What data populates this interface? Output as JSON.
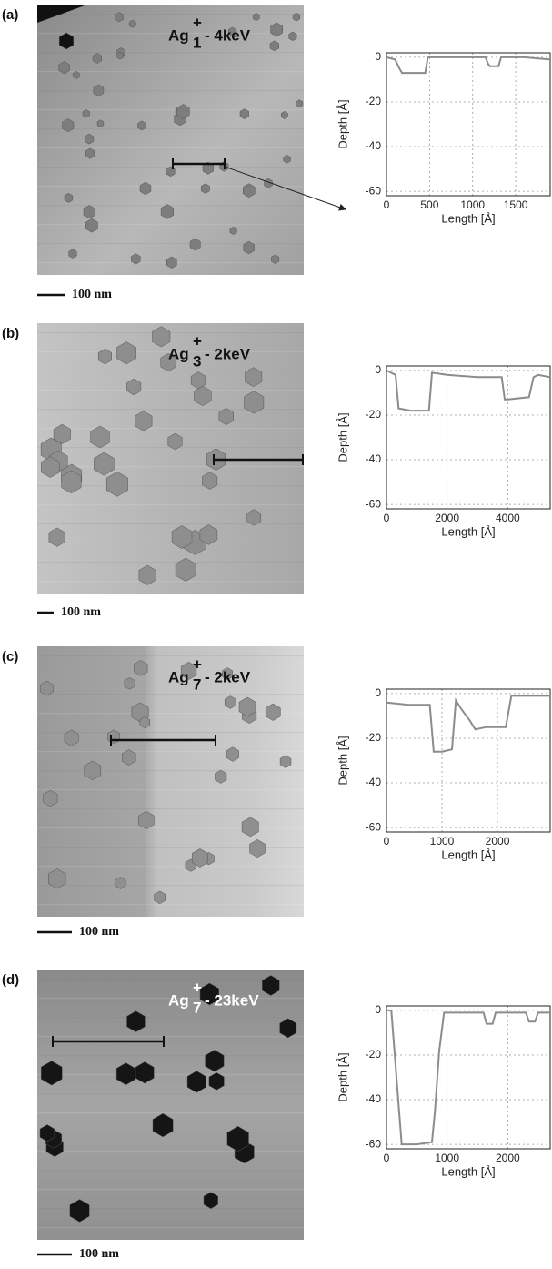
{
  "panels": [
    {
      "label": "(a)",
      "ion": "Ag",
      "cluster_size": "1",
      "charge": "+",
      "energy": "- 4keV",
      "scale_bar": "100 nm"
    },
    {
      "label": "(b)",
      "ion": "Ag",
      "cluster_size": "3",
      "charge": "+",
      "energy": "- 2keV",
      "scale_bar": "100 nm"
    },
    {
      "label": "(c)",
      "ion": "Ag",
      "cluster_size": "7",
      "charge": "+",
      "energy": "- 2keV",
      "scale_bar": "100 nm"
    },
    {
      "label": "(d)",
      "ion": "Ag",
      "cluster_size": "7",
      "charge": "+",
      "energy": "- 23keV",
      "scale_bar": "100 nm"
    }
  ],
  "chart_data": [
    {
      "type": "line",
      "x_label": "Length [Å]",
      "y_label": "Depth [Å]",
      "color": "#8c8c8c",
      "grid": true,
      "x": [
        0,
        100,
        150,
        180,
        300,
        450,
        480,
        600,
        800,
        1000,
        1150,
        1180,
        1200,
        1300,
        1330,
        1400,
        1600,
        1900
      ],
      "values": [
        0,
        -1,
        -5,
        -7,
        -7,
        -7,
        0,
        0,
        0,
        0,
        0,
        -3,
        -4,
        -4,
        0,
        0,
        0,
        -1
      ],
      "xlim": [
        0,
        1900
      ],
      "xticks": [
        0,
        500,
        1000,
        1500
      ],
      "ylim": [
        -62,
        2
      ],
      "yticks": [
        0,
        -20,
        -40,
        -60
      ]
    },
    {
      "type": "line",
      "x_label": "Length [Å]",
      "y_label": "Depth [Å]",
      "color": "#8c8c8c",
      "grid": true,
      "x": [
        0,
        150,
        300,
        400,
        800,
        1400,
        1500,
        2000,
        3000,
        3800,
        3900,
        4000,
        4700,
        4850,
        5000,
        5400
      ],
      "values": [
        0,
        -1,
        -2,
        -17,
        -18,
        -18,
        -1,
        -2,
        -3,
        -3,
        -13,
        -13,
        -12,
        -3,
        -2,
        -3
      ],
      "xlim": [
        0,
        5400
      ],
      "xticks": [
        0,
        2000,
        4000
      ],
      "ylim": [
        -62,
        2
      ],
      "yticks": [
        0,
        -20,
        -40,
        -60
      ]
    },
    {
      "type": "line",
      "x_label": "Length [Å]",
      "y_label": "Depth [Å]",
      "color": "#8c8c8c",
      "grid": true,
      "x": [
        0,
        400,
        780,
        850,
        1000,
        1180,
        1250,
        1350,
        1500,
        1600,
        1800,
        2150,
        2250,
        2500,
        2950
      ],
      "values": [
        -4,
        -5,
        -5,
        -26,
        -26,
        -25,
        -3,
        -7,
        -12,
        -16,
        -15,
        -15,
        -1,
        -1,
        -1
      ],
      "xlim": [
        0,
        2950
      ],
      "xticks": [
        0,
        1000,
        2000
      ],
      "ylim": [
        -62,
        2
      ],
      "yticks": [
        0,
        -20,
        -40,
        -60
      ]
    },
    {
      "type": "line",
      "x_label": "Length [Å]",
      "y_label": "Depth [Å]",
      "color": "#8c8c8c",
      "grid": true,
      "x": [
        0,
        80,
        250,
        500,
        750,
        800,
        870,
        950,
        1200,
        1600,
        1650,
        1750,
        1800,
        2300,
        2350,
        2450,
        2500,
        2700
      ],
      "values": [
        0,
        0,
        -60,
        -60,
        -59,
        -45,
        -18,
        -1,
        -1,
        -1,
        -6,
        -6,
        -1,
        -1,
        -5,
        -5,
        -1,
        -1
      ],
      "xlim": [
        0,
        2700
      ],
      "xticks": [
        0,
        1000,
        2000
      ],
      "ylim": [
        -62,
        2
      ],
      "yticks": [
        0,
        -20,
        -40,
        -60
      ]
    }
  ]
}
